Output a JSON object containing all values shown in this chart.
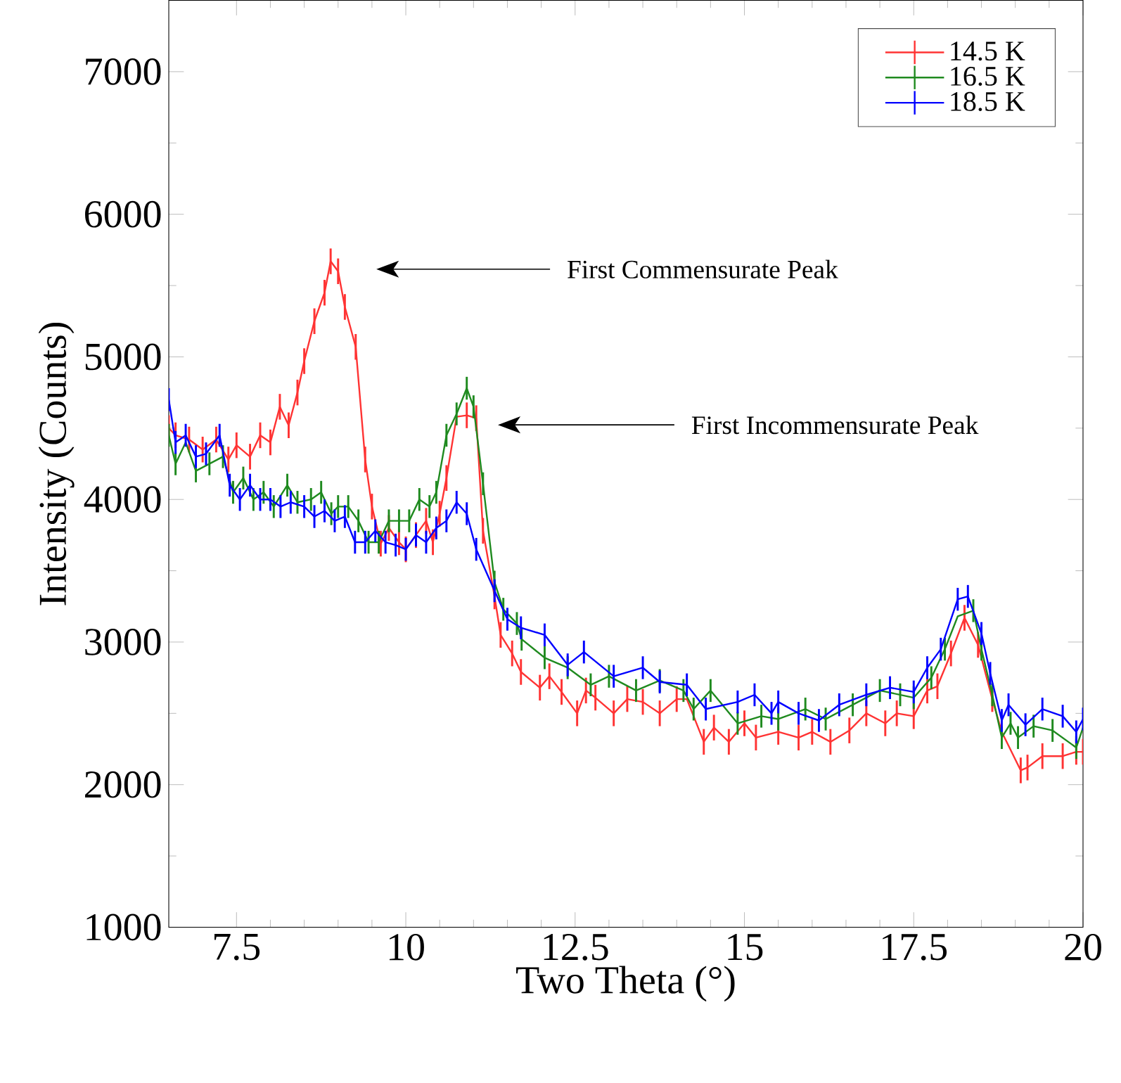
{
  "chart_data": {
    "type": "line",
    "xlabel": "Two Theta (°)",
    "ylabel": "Intensity (Counts)",
    "xlim": [
      6.5,
      20
    ],
    "xticks": [
      7.5,
      10,
      12.5,
      15,
      17.5,
      20
    ],
    "ylim": [
      1000,
      7500
    ],
    "yticks": [
      1000,
      2000,
      3000,
      4000,
      5000,
      6000,
      7000
    ],
    "grid": false,
    "legend": "top right",
    "marker": "none",
    "line_style": "solid",
    "annotations": [
      "First Commensurate Peak",
      "First Incommensurate Peak"
    ],
    "series": [
      {
        "name": "14.5 K",
        "color": "#ff3333",
        "x": [
          6.5,
          6.6,
          6.8,
          7.0,
          7.2,
          7.38,
          7.5,
          7.7,
          7.85,
          8.0,
          8.14,
          8.27,
          8.4,
          8.5,
          8.65,
          8.8,
          8.89,
          9.0,
          9.1,
          9.26,
          9.4,
          9.5,
          9.63,
          9.75,
          9.9,
          10.0,
          10.15,
          10.3,
          10.4,
          10.5,
          10.6,
          10.75,
          10.9,
          11.04,
          11.14,
          11.31,
          11.4,
          11.57,
          11.7,
          11.98,
          12.12,
          12.3,
          12.53,
          12.66,
          12.8,
          13.07,
          13.27,
          13.5,
          13.75,
          14.0,
          14.15,
          14.4,
          14.55,
          14.77,
          15.0,
          15.17,
          15.5,
          15.8,
          16.0,
          16.27,
          16.55,
          16.8,
          17.08,
          17.25,
          17.5,
          17.7,
          17.85,
          18.05,
          18.25,
          18.45,
          18.66,
          18.8,
          19.08,
          19.18,
          19.4,
          19.7,
          19.9,
          20.0
        ],
        "values": [
          4500,
          4450,
          4420,
          4350,
          4420,
          4280,
          4380,
          4300,
          4450,
          4400,
          4650,
          4520,
          4750,
          4970,
          5250,
          5450,
          5670,
          5600,
          5350,
          5070,
          4280,
          3950,
          3690,
          3800,
          3700,
          3650,
          3750,
          3850,
          3700,
          3900,
          4150,
          4580,
          4590,
          4570,
          3780,
          3320,
          3050,
          2920,
          2790,
          2680,
          2760,
          2650,
          2500,
          2660,
          2610,
          2500,
          2600,
          2580,
          2500,
          2600,
          2600,
          2300,
          2400,
          2300,
          2430,
          2330,
          2370,
          2330,
          2370,
          2300,
          2380,
          2500,
          2430,
          2500,
          2480,
          2660,
          2690,
          2920,
          3170,
          2980,
          2600,
          2370,
          2100,
          2120,
          2200,
          2200,
          2230,
          2230
        ],
        "errors": [
          90,
          90,
          90,
          90,
          90,
          90,
          90,
          90,
          90,
          90,
          90,
          90,
          90,
          90,
          90,
          90,
          90,
          90,
          90,
          90,
          90,
          90,
          90,
          90,
          90,
          90,
          90,
          90,
          90,
          90,
          90,
          null,
          90,
          90,
          90,
          90,
          90,
          90,
          90,
          90,
          90,
          90,
          90,
          90,
          90,
          90,
          90,
          90,
          90,
          90,
          null,
          90,
          90,
          90,
          90,
          90,
          90,
          90,
          90,
          90,
          90,
          90,
          90,
          90,
          90,
          90,
          90,
          90,
          90,
          90,
          90,
          null,
          90,
          90,
          90,
          90,
          90,
          90
        ]
      },
      {
        "name": "16.5 K",
        "color": "#1f8a1f",
        "x": [
          6.5,
          6.6,
          6.75,
          6.9,
          7.1,
          7.3,
          7.45,
          7.6,
          7.75,
          7.9,
          8.05,
          8.25,
          8.4,
          8.6,
          8.75,
          8.9,
          9.0,
          9.15,
          9.3,
          9.45,
          9.6,
          9.75,
          9.9,
          10.05,
          10.2,
          10.35,
          10.45,
          10.6,
          10.75,
          10.9,
          11.0,
          11.14,
          11.31,
          11.44,
          11.64,
          11.71,
          12.05,
          12.39,
          12.73,
          13.0,
          13.4,
          13.75,
          14.1,
          14.25,
          14.5,
          14.9,
          15.25,
          15.5,
          15.9,
          16.2,
          16.6,
          17.0,
          17.3,
          17.5,
          17.76,
          17.96,
          18.15,
          18.38,
          18.5,
          18.66,
          18.8,
          18.93,
          19.04,
          19.27,
          19.55,
          19.9,
          20.0
        ],
        "values": [
          4450,
          4250,
          4400,
          4200,
          4250,
          4300,
          4050,
          4150,
          4000,
          4050,
          3950,
          4100,
          3980,
          4000,
          4050,
          3900,
          3950,
          3950,
          3850,
          3700,
          3700,
          3850,
          3850,
          3850,
          4000,
          3950,
          4050,
          4450,
          4600,
          4780,
          4650,
          4110,
          3420,
          3230,
          3130,
          3020,
          2890,
          2820,
          2700,
          2760,
          2660,
          2730,
          2660,
          2530,
          2660,
          2430,
          2480,
          2460,
          2530,
          2460,
          2560,
          2660,
          2630,
          2610,
          2750,
          2950,
          3180,
          3220,
          2950,
          2630,
          2330,
          2430,
          2330,
          2410,
          2380,
          2260,
          2400
        ],
        "errors": [
          80,
          80,
          null,
          80,
          80,
          80,
          80,
          80,
          80,
          80,
          80,
          80,
          80,
          80,
          80,
          80,
          80,
          80,
          80,
          80,
          80,
          80,
          80,
          80,
          80,
          80,
          80,
          80,
          80,
          80,
          80,
          80,
          80,
          80,
          80,
          80,
          80,
          80,
          80,
          80,
          80,
          80,
          80,
          80,
          80,
          80,
          80,
          80,
          80,
          80,
          80,
          80,
          80,
          80,
          80,
          80,
          null,
          80,
          80,
          80,
          80,
          80,
          80,
          80,
          80,
          80,
          null
        ]
      },
      {
        "name": "18.5 K",
        "color": "#0000ff",
        "x": [
          6.5,
          6.6,
          6.75,
          6.9,
          7.05,
          7.25,
          7.4,
          7.55,
          7.7,
          7.85,
          8.0,
          8.15,
          8.3,
          8.5,
          8.65,
          8.8,
          8.95,
          9.1,
          9.25,
          9.4,
          9.55,
          9.7,
          9.85,
          10.0,
          10.15,
          10.3,
          10.45,
          10.6,
          10.75,
          10.9,
          11.04,
          11.31,
          11.5,
          11.7,
          12.05,
          12.39,
          12.63,
          13.07,
          13.5,
          13.75,
          14.15,
          14.43,
          14.9,
          15.15,
          15.4,
          15.5,
          15.8,
          16.1,
          16.4,
          16.8,
          17.15,
          17.5,
          17.7,
          17.9,
          18.15,
          18.3,
          18.5,
          18.63,
          18.8,
          18.9,
          19.15,
          19.4,
          19.7,
          19.9,
          20.0
        ],
        "values": [
          4700,
          4400,
          4450,
          4300,
          4320,
          4450,
          4100,
          4000,
          4100,
          4000,
          4000,
          3950,
          3980,
          3950,
          3880,
          3920,
          3850,
          3880,
          3700,
          3700,
          3780,
          3700,
          3680,
          3650,
          3750,
          3700,
          3800,
          3850,
          3980,
          3900,
          3650,
          3360,
          3160,
          3100,
          3050,
          2840,
          2930,
          2760,
          2820,
          2720,
          2700,
          2530,
          2580,
          2630,
          2500,
          2580,
          2500,
          2450,
          2560,
          2630,
          2680,
          2650,
          2820,
          2950,
          3300,
          3320,
          3060,
          2780,
          2450,
          2560,
          2420,
          2530,
          2480,
          2370,
          2460
        ],
        "errors": [
          80,
          80,
          80,
          80,
          80,
          80,
          80,
          80,
          80,
          80,
          80,
          80,
          80,
          80,
          80,
          80,
          80,
          80,
          80,
          80,
          80,
          80,
          80,
          80,
          80,
          80,
          80,
          80,
          80,
          80,
          80,
          80,
          80,
          80,
          80,
          80,
          80,
          80,
          80,
          80,
          80,
          80,
          80,
          80,
          80,
          80,
          80,
          80,
          80,
          80,
          80,
          80,
          80,
          80,
          80,
          80,
          80,
          80,
          80,
          80,
          80,
          80,
          80,
          80,
          80
        ]
      }
    ]
  }
}
